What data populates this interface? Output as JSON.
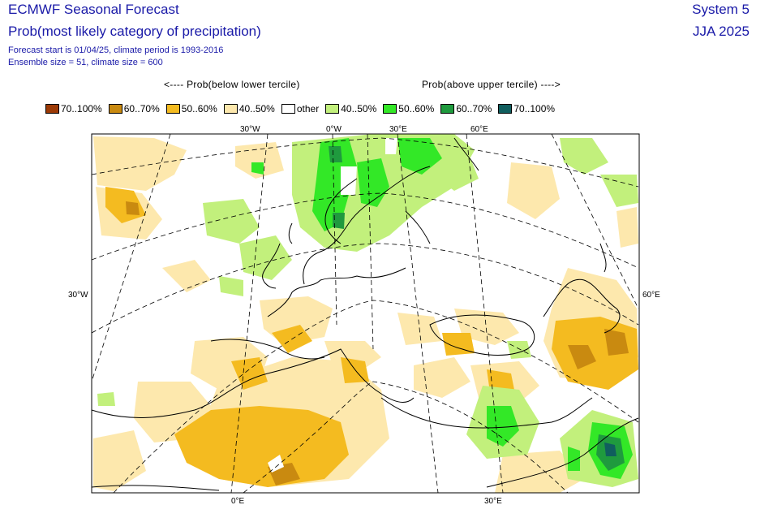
{
  "header": {
    "title": "ECMWF Seasonal Forecast",
    "subtitle": "Prob(most likely category of precipitation)",
    "forecast_start": "Forecast start is 01/04/25, climate period is 1993-2016",
    "ensemble": "Ensemble size = 51, climate size = 600",
    "system": "System 5",
    "season": "JJA 2025"
  },
  "legend": {
    "below_label": "<---- Prob(below lower tercile)",
    "above_label": "Prob(above upper tercile) ---->",
    "items": [
      {
        "label": "70..100%",
        "color": "#9c3a06"
      },
      {
        "label": "60..70%",
        "color": "#c98a10"
      },
      {
        "label": "50..60%",
        "color": "#f4bb20"
      },
      {
        "label": "40..50%",
        "color": "#fde8ad"
      },
      {
        "label": "other",
        "color": "#ffffff"
      },
      {
        "label": "40..50%",
        "color": "#c2f07c"
      },
      {
        "label": "50..60%",
        "color": "#33e827"
      },
      {
        "label": "60..70%",
        "color": "#1f9a3e"
      },
      {
        "label": "70..100%",
        "color": "#105e5e"
      }
    ]
  },
  "map": {
    "ticks_top": [
      "30°W",
      "0°W",
      "30°E",
      "60°E"
    ],
    "tick_left": "30°W",
    "tick_right": "60°E",
    "ticks_bottom": [
      "0°E",
      "30°E"
    ]
  }
}
